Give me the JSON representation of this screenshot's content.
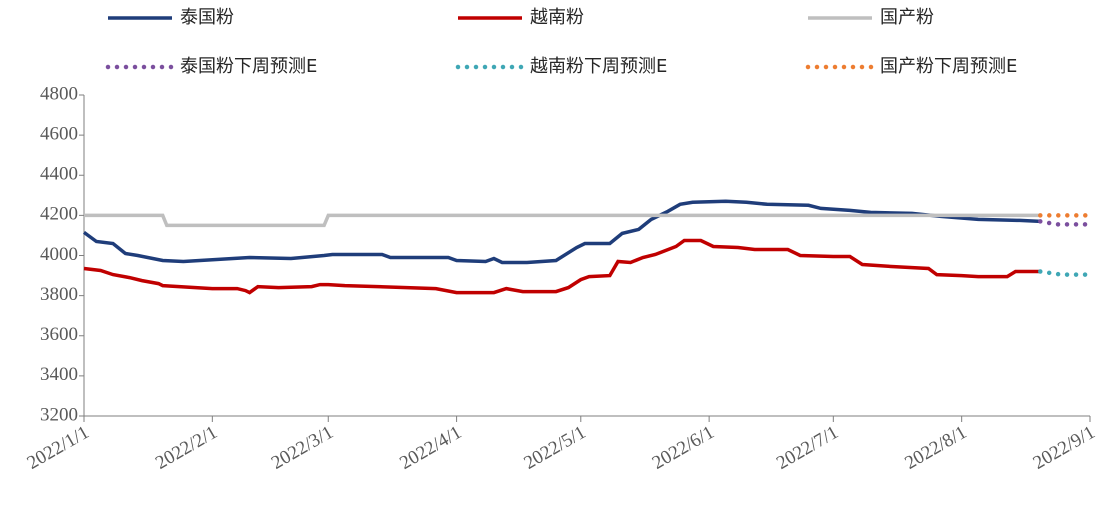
{
  "chart_data": {
    "type": "line",
    "xlim": [
      "2022/1/1",
      "2022/9/1"
    ],
    "xticks": [
      "2022/1/1",
      "2022/2/1",
      "2022/3/1",
      "2022/4/1",
      "2022/5/1",
      "2022/6/1",
      "2022/7/1",
      "2022/8/1",
      "2022/9/1"
    ],
    "ylim": [
      3200,
      4800
    ],
    "yticks": [
      3200,
      3400,
      3600,
      3800,
      4000,
      4200,
      4400,
      4600,
      4800
    ],
    "series": [
      {
        "name": "泰国粉",
        "color": "#1f3d7a",
        "dash": false,
        "x": [
          "2022/1/1",
          "2022/1/4",
          "2022/1/8",
          "2022/1/11",
          "2022/1/14",
          "2022/1/20",
          "2022/1/25",
          "2022/2/10",
          "2022/2/20",
          "2022/2/28",
          "2022/3/2",
          "2022/3/14",
          "2022/3/16",
          "2022/3/30",
          "2022/4/1",
          "2022/4/8",
          "2022/4/10",
          "2022/4/12",
          "2022/4/18",
          "2022/4/25",
          "2022/4/30",
          "2022/5/2",
          "2022/5/8",
          "2022/5/11",
          "2022/5/15",
          "2022/5/18",
          "2022/5/22",
          "2022/5/25",
          "2022/5/28",
          "2022/6/5",
          "2022/6/10",
          "2022/6/15",
          "2022/6/25",
          "2022/6/28",
          "2022/7/5",
          "2022/7/10",
          "2022/7/20",
          "2022/7/27",
          "2022/8/5",
          "2022/8/15",
          "2022/8/20"
        ],
        "values": [
          4115,
          4070,
          4060,
          4010,
          4000,
          3975,
          3970,
          3990,
          3985,
          4000,
          4005,
          4005,
          3990,
          3990,
          3975,
          3970,
          3985,
          3965,
          3965,
          3975,
          4040,
          4060,
          4060,
          4110,
          4130,
          4180,
          4220,
          4255,
          4265,
          4270,
          4265,
          4255,
          4250,
          4235,
          4225,
          4215,
          4210,
          4195,
          4180,
          4175,
          4170
        ]
      },
      {
        "name": "越南粉",
        "color": "#c00000",
        "dash": false,
        "x": [
          "2022/1/1",
          "2022/1/5",
          "2022/1/8",
          "2022/1/12",
          "2022/1/15",
          "2022/1/19",
          "2022/1/20",
          "2022/2/1",
          "2022/2/7",
          "2022/2/9",
          "2022/2/10",
          "2022/2/12",
          "2022/2/17",
          "2022/2/25",
          "2022/2/27",
          "2022/3/1",
          "2022/3/5",
          "2022/3/20",
          "2022/3/27",
          "2022/4/1",
          "2022/4/10",
          "2022/4/13",
          "2022/4/17",
          "2022/4/25",
          "2022/4/28",
          "2022/5/1",
          "2022/5/3",
          "2022/5/8",
          "2022/5/10",
          "2022/5/13",
          "2022/5/16",
          "2022/5/19",
          "2022/5/24",
          "2022/5/26",
          "2022/5/30",
          "2022/6/2",
          "2022/6/8",
          "2022/6/12",
          "2022/6/20",
          "2022/6/23",
          "2022/7/1",
          "2022/7/5",
          "2022/7/8",
          "2022/7/15",
          "2022/7/24",
          "2022/7/26",
          "2022/8/1",
          "2022/8/5",
          "2022/8/12",
          "2022/8/14",
          "2022/8/20"
        ],
        "values": [
          3935,
          3925,
          3905,
          3890,
          3875,
          3860,
          3850,
          3835,
          3835,
          3825,
          3815,
          3845,
          3840,
          3845,
          3855,
          3855,
          3850,
          3840,
          3835,
          3815,
          3815,
          3835,
          3820,
          3820,
          3840,
          3880,
          3895,
          3900,
          3970,
          3965,
          3990,
          4005,
          4045,
          4075,
          4075,
          4045,
          4040,
          4030,
          4030,
          4000,
          3995,
          3995,
          3955,
          3945,
          3935,
          3905,
          3900,
          3895,
          3895,
          3920,
          3920
        ]
      },
      {
        "name": "国产粉",
        "color": "#bfbfbf",
        "dash": false,
        "x": [
          "2022/1/1",
          "2022/1/20",
          "2022/1/21",
          "2022/2/28",
          "2022/3/1",
          "2022/8/20"
        ],
        "values": [
          4200,
          4200,
          4150,
          4150,
          4200,
          4200
        ]
      },
      {
        "name": "泰国粉下周预测E",
        "color": "#7b4f9e",
        "dash": true,
        "x": [
          "2022/8/20",
          "2022/8/24",
          "2022/9/1"
        ],
        "values": [
          4170,
          4155,
          4155
        ]
      },
      {
        "name": "越南粉下周预测E",
        "color": "#3fa7b5",
        "dash": true,
        "x": [
          "2022/8/20",
          "2022/8/25",
          "2022/9/1"
        ],
        "values": [
          3920,
          3905,
          3905
        ]
      },
      {
        "name": "国产粉下周预测E",
        "color": "#ed7d31",
        "dash": true,
        "x": [
          "2022/8/20",
          "2022/9/1"
        ],
        "values": [
          4200,
          4200
        ]
      }
    ]
  }
}
